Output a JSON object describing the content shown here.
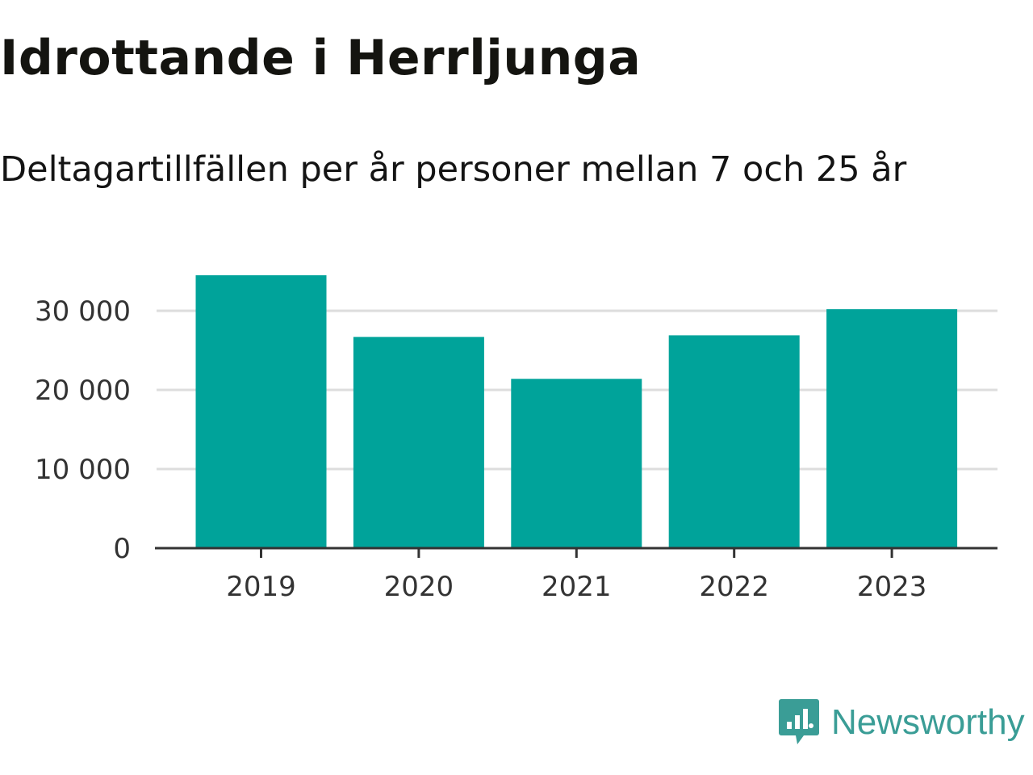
{
  "header": {
    "title": "Idrottande i Herrljunga",
    "subtitle": "Deltagartillfällen per år personer mellan 7 och 25 år"
  },
  "brand": {
    "name": "Newsworthy",
    "color": "#3a9d96"
  },
  "chart_data": {
    "type": "bar",
    "categories": [
      "2019",
      "2020",
      "2021",
      "2022",
      "2023"
    ],
    "values": [
      34500,
      26700,
      21400,
      26900,
      30200
    ],
    "ylim": [
      0,
      35000
    ],
    "yticks": [
      0,
      10000,
      20000,
      30000
    ],
    "ytick_labels": [
      "0",
      "10 000",
      "20 000",
      "30 000"
    ],
    "grid": true,
    "bar_color": "#00a39a",
    "title": "Idrottande i Herrljunga",
    "subtitle": "Deltagartillfällen per år personer mellan 7 och 25 år",
    "xlabel": "",
    "ylabel": ""
  }
}
